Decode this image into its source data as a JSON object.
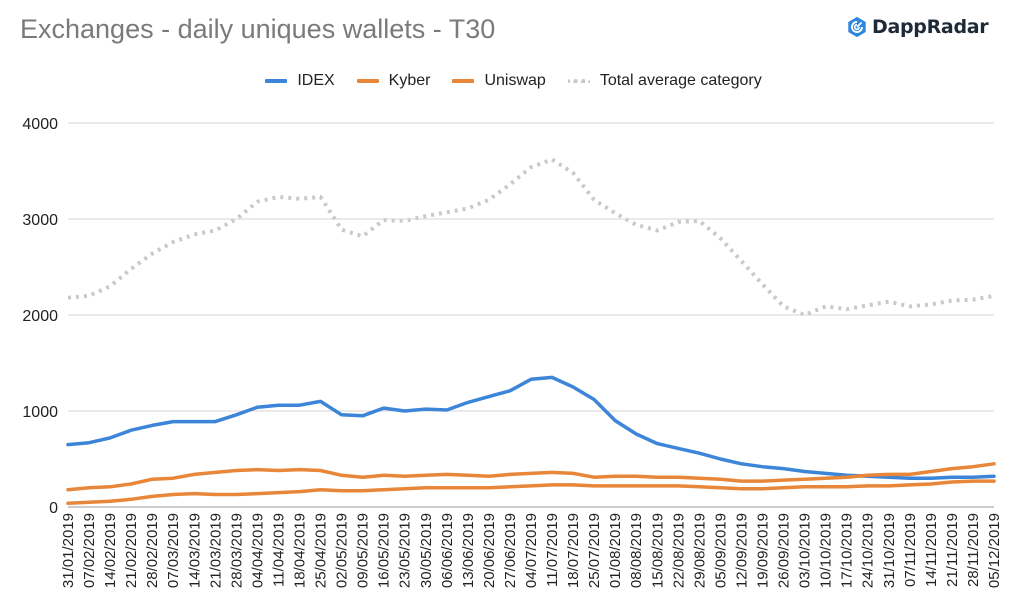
{
  "title": "Exchanges - daily uniques wallets - T30",
  "brand": {
    "name": "DappRadar",
    "icon": "dappradar-logo-icon",
    "color": "#2e86de"
  },
  "chart_data": {
    "type": "line",
    "title": "Exchanges - daily uniques wallets - T30",
    "xlabel": "",
    "ylabel": "",
    "ylim": [
      0,
      4000
    ],
    "yticks": [
      0,
      1000,
      2000,
      3000,
      4000
    ],
    "grid": true,
    "legend_position": "top",
    "x": [
      "31/01/2019",
      "07/02/2019",
      "14/02/2019",
      "21/02/2019",
      "28/02/2019",
      "07/03/2019",
      "14/03/2019",
      "21/03/2019",
      "28/03/2019",
      "04/04/2019",
      "11/04/2019",
      "18/04/2019",
      "25/04/2019",
      "02/05/2019",
      "09/05/2019",
      "16/05/2019",
      "23/05/2019",
      "30/05/2019",
      "06/06/2019",
      "13/06/2019",
      "20/06/2019",
      "27/06/2019",
      "04/07/2019",
      "11/07/2019",
      "18/07/2019",
      "25/07/2019",
      "01/08/2019",
      "08/08/2019",
      "15/08/2019",
      "22/08/2019",
      "29/08/2019",
      "05/09/2019",
      "12/09/2019",
      "19/09/2019",
      "26/09/2019",
      "03/10/2019",
      "10/10/2019",
      "17/10/2019",
      "24/10/2019",
      "31/10/2019",
      "07/11/2019",
      "14/11/2019",
      "21/11/2019",
      "28/11/2019",
      "05/12/2019"
    ],
    "series": [
      {
        "name": "IDEX",
        "color": "#3d85d8",
        "style": "solid",
        "values": [
          650,
          670,
          720,
          800,
          850,
          890,
          890,
          890,
          960,
          1040,
          1060,
          1060,
          1100,
          960,
          950,
          1030,
          1000,
          1020,
          1010,
          1090,
          1150,
          1210,
          1330,
          1350,
          1250,
          1120,
          900,
          760,
          660,
          610,
          560,
          500,
          450,
          420,
          400,
          370,
          350,
          330,
          320,
          310,
          300,
          300,
          310,
          310,
          320
        ]
      },
      {
        "name": "Kyber",
        "color": "#e8873a",
        "style": "solid",
        "values": [
          180,
          200,
          210,
          240,
          290,
          300,
          340,
          360,
          380,
          390,
          380,
          390,
          380,
          330,
          310,
          330,
          320,
          330,
          340,
          330,
          320,
          340,
          350,
          360,
          350,
          310,
          320,
          320,
          310,
          310,
          300,
          290,
          270,
          270,
          280,
          290,
          300,
          310,
          330,
          340,
          340,
          370,
          400,
          420,
          450
        ]
      },
      {
        "name": "Uniswap",
        "color": "#e8873a",
        "style": "solid",
        "values": [
          40,
          50,
          60,
          80,
          110,
          130,
          140,
          130,
          130,
          140,
          150,
          160,
          180,
          170,
          170,
          180,
          190,
          200,
          200,
          200,
          200,
          210,
          220,
          230,
          230,
          220,
          220,
          220,
          220,
          220,
          210,
          200,
          190,
          190,
          200,
          210,
          210,
          210,
          220,
          220,
          230,
          240,
          260,
          270,
          270
        ]
      },
      {
        "name": "Total average category",
        "color": "#c9c9c9",
        "style": "dotted",
        "values": [
          2180,
          2200,
          2300,
          2480,
          2640,
          2760,
          2840,
          2880,
          3000,
          3180,
          3230,
          3210,
          3230,
          2890,
          2820,
          2990,
          2980,
          3030,
          3070,
          3110,
          3200,
          3360,
          3540,
          3620,
          3480,
          3200,
          3060,
          2940,
          2880,
          2970,
          2980,
          2800,
          2560,
          2320,
          2090,
          2000,
          2090,
          2060,
          2100,
          2140,
          2090,
          2110,
          2150,
          2160,
          2200
        ]
      }
    ]
  }
}
